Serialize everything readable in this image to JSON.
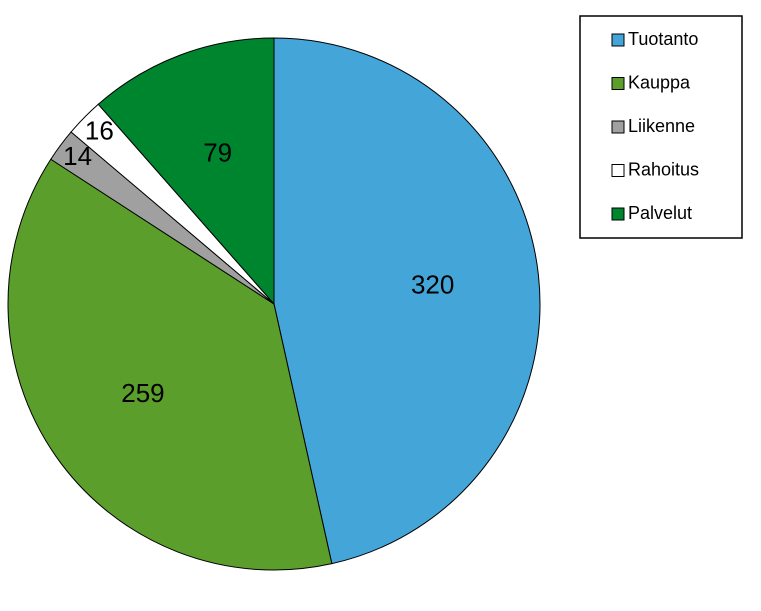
{
  "chart_data": {
    "type": "pie",
    "categories": [
      "Tuotanto",
      "Kauppa",
      "Liikenne",
      "Rahoitus",
      "Palvelut"
    ],
    "values": [
      320,
      259,
      14,
      16,
      79
    ],
    "colors": [
      "#44a5d9",
      "#5b9e2c",
      "#a0a0a0",
      "#ffffff",
      "#00852f"
    ],
    "legend": "right"
  }
}
